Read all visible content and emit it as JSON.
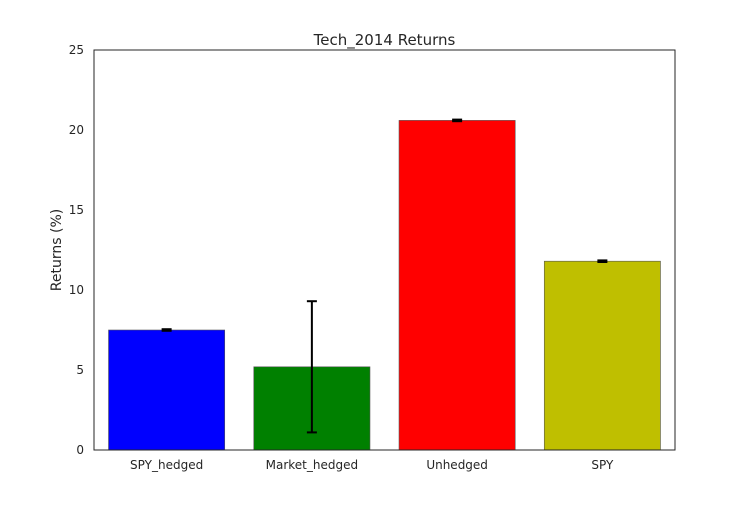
{
  "chart_data": {
    "type": "bar",
    "title": "Tech_2014 Returns",
    "xlabel": "",
    "ylabel": "Returns (%)",
    "ylim": [
      0,
      25
    ],
    "yticks": [
      0,
      5,
      10,
      15,
      20,
      25
    ],
    "grid": false,
    "legend": "none",
    "categories": [
      "SPY_hedged",
      "Market_hedged",
      "Unhedged",
      "SPY"
    ],
    "values": [
      7.5,
      5.2,
      20.6,
      11.8
    ],
    "error_low": [
      7.45,
      1.1,
      20.55,
      11.75
    ],
    "error_high": [
      7.55,
      9.3,
      20.65,
      11.85
    ],
    "colors": [
      "#0000ff",
      "#008000",
      "#ff0000",
      "#bfbf00"
    ]
  }
}
